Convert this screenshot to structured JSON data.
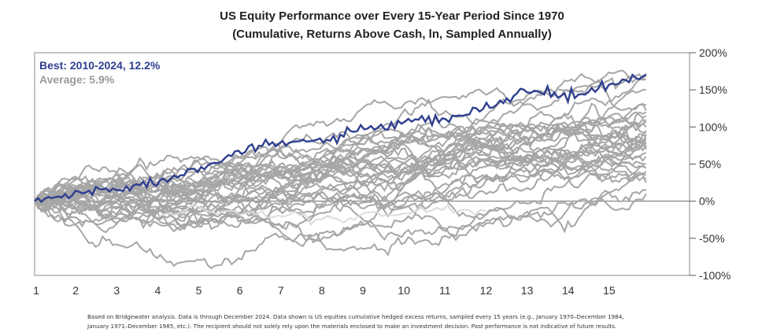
{
  "title": "US Equity Performance over Every 15-Year Period Since 1970",
  "subtitle": "(Cumulative, Returns Above Cash, ln, Sampled Annually)",
  "footnote": {
    "line1": "Based on Bridgewater analysis. Data is through December 2024. Data shown is US equities cumulative hedged excess returns, sampled every 15 years (e.g., January 1970–December 1984,",
    "line2": "January 1971–December 1985, etc.). The recipient should not solely rely upon the materials enclosed to make an investment decision. Past performance is not indicative of future results."
  },
  "legend": {
    "best": "Best: 2010-2024, 12.2%",
    "average": "Average: 5.9%"
  },
  "colors": {
    "best": "#2f3f8f",
    "others": "#a6a6a6",
    "highlight_light": "#dcdcdc",
    "axis": "#555555"
  },
  "chart_data": {
    "type": "line",
    "x_tick_labels": [
      "1",
      "2",
      "3",
      "4",
      "5",
      "6",
      "7",
      "8",
      "9",
      "10",
      "11",
      "12",
      "13",
      "14",
      "15"
    ],
    "y_tick_labels": [
      "200%",
      "150%",
      "100%",
      "50%",
      "0%",
      "-50%",
      "-100%"
    ],
    "y_ticks": [
      200,
      150,
      100,
      50,
      0,
      -50,
      -100
    ],
    "xlim": [
      1,
      16
    ],
    "ylim": [
      -100,
      200
    ],
    "grid": false,
    "legend_position": "top-left",
    "best_series": {
      "name": "Best: 2010-2024, 12.2%",
      "x": [
        1,
        2,
        3,
        4,
        5,
        6,
        7,
        8,
        9,
        10,
        11,
        12,
        13,
        14,
        15,
        16
      ],
      "y": [
        0,
        10,
        18,
        25,
        47,
        66,
        78,
        82,
        95,
        105,
        110,
        125,
        150,
        140,
        155,
        172
      ]
    },
    "series_end_values_approx": [
      172,
      168,
      150,
      140,
      130,
      120,
      115,
      110,
      105,
      100,
      98,
      95,
      92,
      90,
      88,
      85,
      82,
      80,
      78,
      75,
      72,
      70,
      65,
      60,
      55,
      50,
      45,
      40,
      35,
      30,
      25,
      20,
      15,
      10
    ]
  }
}
